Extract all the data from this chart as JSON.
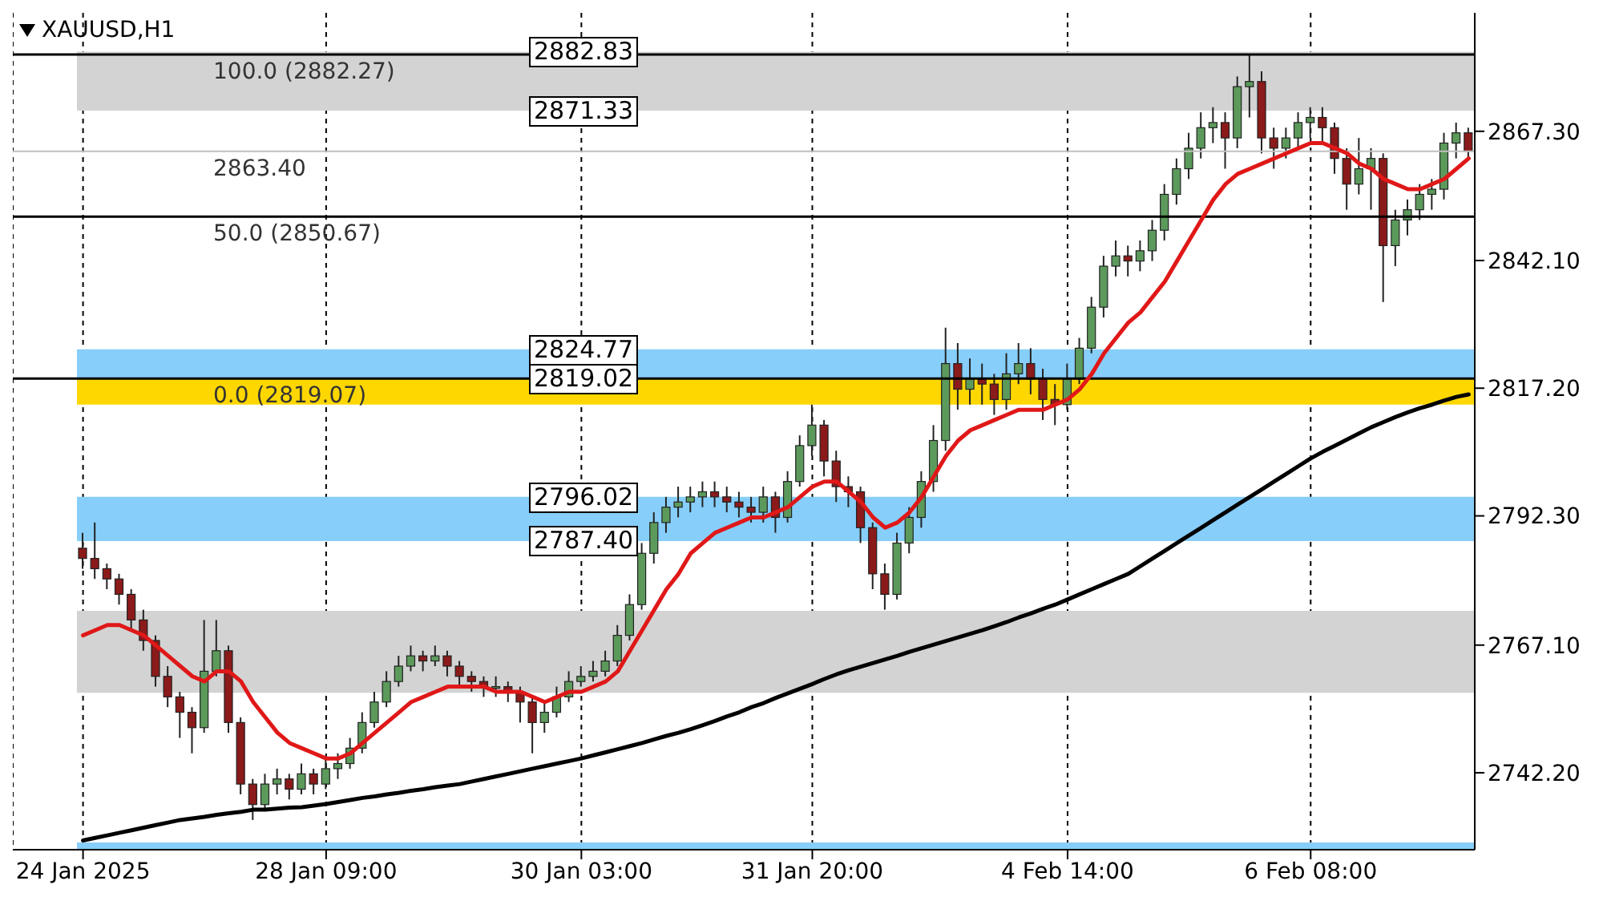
{
  "chart_data": {
    "type": "candlestick",
    "title": "XAUUSD,H1",
    "categories": [
      "24 Jan 2025",
      null,
      null,
      null,
      null,
      null,
      null,
      null,
      null,
      null,
      null,
      null,
      null,
      null,
      null,
      null,
      null,
      null,
      null,
      null,
      "28 Jan 09:00",
      null,
      null,
      null,
      null,
      null,
      null,
      null,
      null,
      null,
      null,
      null,
      null,
      null,
      null,
      null,
      null,
      null,
      null,
      null,
      null,
      "30 Jan 03:00",
      null,
      null,
      null,
      null,
      null,
      null,
      null,
      null,
      null,
      null,
      null,
      null,
      null,
      null,
      null,
      null,
      null,
      null,
      "31 Jan 20:00",
      null,
      null,
      null,
      null,
      null,
      null,
      null,
      null,
      null,
      null,
      null,
      null,
      null,
      null,
      null,
      null,
      null,
      null,
      null,
      null,
      "4 Feb 14:00",
      null,
      null,
      null,
      null,
      null,
      null,
      null,
      null,
      null,
      null,
      null,
      null,
      null,
      null,
      null,
      null,
      null,
      null,
      null,
      "6 Feb 08:00",
      null,
      null,
      null,
      null,
      null,
      null,
      null,
      null,
      null,
      null,
      null,
      null,
      null
    ],
    "ohlc": [
      [
        2786,
        2789,
        2782,
        2784
      ],
      [
        2784,
        2791,
        2780,
        2782
      ],
      [
        2782,
        2783,
        2778,
        2780
      ],
      [
        2780,
        2781,
        2775,
        2777
      ],
      [
        2777,
        2778,
        2770,
        2772
      ],
      [
        2772,
        2774,
        2766,
        2768
      ],
      [
        2768,
        2769,
        2759,
        2761
      ],
      [
        2761,
        2763,
        2755,
        2757
      ],
      [
        2757,
        2758,
        2749,
        2754
      ],
      [
        2754,
        2755,
        2746,
        2751
      ],
      [
        2751,
        2772,
        2750,
        2762
      ],
      [
        2762,
        2772,
        2761,
        2766
      ],
      [
        2766,
        2767,
        2750,
        2752
      ],
      [
        2752,
        2753,
        2738,
        2740
      ],
      [
        2740,
        2741,
        2733,
        2736
      ],
      [
        2736,
        2742,
        2735,
        2740
      ],
      [
        2740,
        2743,
        2738,
        2741
      ],
      [
        2741,
        2742,
        2737,
        2739
      ],
      [
        2739,
        2744,
        2738,
        2742
      ],
      [
        2742,
        2743,
        2738,
        2740
      ],
      [
        2740,
        2745,
        2739,
        2743
      ],
      [
        2743,
        2746,
        2741,
        2744
      ],
      [
        2744,
        2749,
        2743,
        2747
      ],
      [
        2747,
        2754,
        2746,
        2752
      ],
      [
        2752,
        2758,
        2751,
        2756
      ],
      [
        2756,
        2762,
        2755,
        2760
      ],
      [
        2760,
        2765,
        2759,
        2763
      ],
      [
        2763,
        2767,
        2762,
        2765
      ],
      [
        2765,
        2766,
        2762,
        2764
      ],
      [
        2764,
        2767,
        2763,
        2765
      ],
      [
        2765,
        2766,
        2761,
        2763
      ],
      [
        2763,
        2764,
        2759,
        2761
      ],
      [
        2761,
        2762,
        2758,
        2760
      ],
      [
        2760,
        2761,
        2757,
        2759
      ],
      [
        2759,
        2761,
        2757,
        2759
      ],
      [
        2759,
        2760,
        2756,
        2758
      ],
      [
        2758,
        2759,
        2752,
        2756
      ],
      [
        2756,
        2757,
        2746,
        2752
      ],
      [
        2752,
        2756,
        2750,
        2754
      ],
      [
        2754,
        2759,
        2753,
        2757
      ],
      [
        2757,
        2762,
        2756,
        2760
      ],
      [
        2760,
        2763,
        2759,
        2761
      ],
      [
        2761,
        2764,
        2760,
        2762
      ],
      [
        2762,
        2766,
        2761,
        2764
      ],
      [
        2764,
        2771,
        2763,
        2769
      ],
      [
        2769,
        2777,
        2768,
        2775
      ],
      [
        2775,
        2787,
        2774,
        2785
      ],
      [
        2785,
        2793,
        2783,
        2791
      ],
      [
        2791,
        2796,
        2789,
        2794
      ],
      [
        2794,
        2798,
        2792,
        2795
      ],
      [
        2795,
        2798,
        2793,
        2796
      ],
      [
        2796,
        2799,
        2794,
        2797
      ],
      [
        2797,
        2799,
        2794,
        2796
      ],
      [
        2796,
        2798,
        2793,
        2795
      ],
      [
        2795,
        2797,
        2792,
        2794
      ],
      [
        2794,
        2796,
        2791,
        2793
      ],
      [
        2793,
        2798,
        2791,
        2796
      ],
      [
        2796,
        2797,
        2789,
        2792
      ],
      [
        2792,
        2801,
        2791,
        2799
      ],
      [
        2799,
        2808,
        2798,
        2806
      ],
      [
        2806,
        2814,
        2804,
        2810
      ],
      [
        2810,
        2811,
        2800,
        2803
      ],
      [
        2803,
        2805,
        2795,
        2798
      ],
      [
        2798,
        2800,
        2794,
        2797
      ],
      [
        2797,
        2798,
        2787,
        2790
      ],
      [
        2790,
        2791,
        2778,
        2781
      ],
      [
        2781,
        2783,
        2774,
        2777
      ],
      [
        2777,
        2789,
        2776,
        2787
      ],
      [
        2787,
        2794,
        2785,
        2792
      ],
      [
        2792,
        2801,
        2790,
        2799
      ],
      [
        2799,
        2810,
        2797,
        2807
      ],
      [
        2807,
        2829,
        2805,
        2822
      ],
      [
        2822,
        2826,
        2813,
        2817
      ],
      [
        2817,
        2823,
        2814,
        2819
      ],
      [
        2819,
        2822,
        2814,
        2818
      ],
      [
        2818,
        2820,
        2812,
        2815
      ],
      [
        2815,
        2824,
        2813,
        2820
      ],
      [
        2820,
        2826,
        2818,
        2822
      ],
      [
        2822,
        2825,
        2816,
        2819
      ],
      [
        2819,
        2821,
        2811,
        2815
      ],
      [
        2815,
        2818,
        2810,
        2814
      ],
      [
        2814,
        2822,
        2813,
        2819
      ],
      [
        2819,
        2827,
        2818,
        2825
      ],
      [
        2825,
        2835,
        2824,
        2833
      ],
      [
        2833,
        2843,
        2831,
        2841
      ],
      [
        2841,
        2846,
        2839,
        2843
      ],
      [
        2843,
        2845,
        2839,
        2842
      ],
      [
        2842,
        2846,
        2840,
        2844
      ],
      [
        2844,
        2850,
        2842,
        2848
      ],
      [
        2848,
        2857,
        2846,
        2855
      ],
      [
        2855,
        2862,
        2853,
        2860
      ],
      [
        2860,
        2867,
        2858,
        2864
      ],
      [
        2864,
        2871,
        2862,
        2868
      ],
      [
        2868,
        2872,
        2865,
        2869
      ],
      [
        2869,
        2871,
        2860,
        2866
      ],
      [
        2866,
        2878,
        2864,
        2876
      ],
      [
        2876,
        2882.27,
        2870,
        2877
      ],
      [
        2877,
        2879,
        2863,
        2866
      ],
      [
        2866,
        2868,
        2860,
        2864
      ],
      [
        2864,
        2868,
        2862,
        2866
      ],
      [
        2866,
        2871,
        2864,
        2869
      ],
      [
        2869,
        2872,
        2866,
        2870
      ],
      [
        2870,
        2872,
        2865,
        2868
      ],
      [
        2868,
        2869,
        2859,
        2862
      ],
      [
        2862,
        2864,
        2852,
        2857
      ],
      [
        2857,
        2866,
        2855,
        2860
      ],
      [
        2860,
        2864,
        2852,
        2862
      ],
      [
        2862,
        2863,
        2834,
        2845
      ],
      [
        2845,
        2852,
        2841,
        2850
      ],
      [
        2850,
        2854,
        2847,
        2852
      ],
      [
        2852,
        2857,
        2850,
        2855
      ],
      [
        2855,
        2858,
        2852,
        2856
      ],
      [
        2856,
        2867,
        2854,
        2865
      ],
      [
        2865,
        2869,
        2862,
        2867
      ],
      [
        2867,
        2868,
        2862,
        2863.4
      ]
    ],
    "series": [
      {
        "type": "line",
        "color": "#e01818",
        "values": [
          2769,
          2770,
          2771,
          2771,
          2770,
          2769,
          2767,
          2765,
          2763,
          2761,
          2760,
          2762,
          2762,
          2760,
          2756,
          2753,
          2750,
          2748,
          2747,
          2746,
          2745,
          2745,
          2746,
          2748,
          2750,
          2752,
          2754,
          2756,
          2757,
          2758,
          2759,
          2759,
          2759,
          2759,
          2758,
          2758,
          2758,
          2757,
          2756,
          2757,
          2758,
          2758,
          2759,
          2760,
          2762,
          2766,
          2770,
          2774,
          2778,
          2781,
          2785,
          2787,
          2789,
          2790,
          2791,
          2792,
          2792,
          2793,
          2794,
          2796,
          2798,
          2799,
          2799,
          2797,
          2795,
          2792,
          2790,
          2791,
          2793,
          2796,
          2800,
          2804,
          2807,
          2809,
          2810,
          2811,
          2812,
          2813,
          2813,
          2813,
          2814,
          2815,
          2817,
          2820,
          2824,
          2827,
          2830,
          2832,
          2835,
          2838,
          2842,
          2846,
          2850,
          2854,
          2857,
          2859,
          2860,
          2861,
          2862,
          2863,
          2864,
          2865,
          2865,
          2864,
          2863,
          2861,
          2860,
          2858,
          2857,
          2856,
          2856,
          2857,
          2858,
          2860,
          2862
        ]
      },
      {
        "type": "line",
        "color": "#000000",
        "values": [
          2729,
          2729.5,
          2730,
          2730.5,
          2731,
          2731.5,
          2732,
          2732.5,
          2733,
          2733.3,
          2733.6,
          2734,
          2734.3,
          2734.6,
          2735,
          2735,
          2735.2,
          2735.4,
          2735.5,
          2735.8,
          2736.1,
          2736.5,
          2736.9,
          2737.3,
          2737.6,
          2738,
          2738.3,
          2738.7,
          2739,
          2739.4,
          2739.7,
          2740,
          2740.5,
          2741,
          2741.5,
          2742,
          2742.5,
          2743,
          2743.5,
          2744,
          2744.5,
          2745,
          2745.6,
          2746.2,
          2746.8,
          2747.4,
          2748,
          2748.7,
          2749.4,
          2750,
          2750.7,
          2751.5,
          2752.3,
          2753.2,
          2754,
          2755,
          2755.8,
          2756.8,
          2757.7,
          2758.6,
          2759.5,
          2760.5,
          2761.4,
          2762.2,
          2762.9,
          2763.6,
          2764.3,
          2765,
          2765.8,
          2766.5,
          2767.2,
          2767.9,
          2768.6,
          2769.3,
          2770,
          2770.8,
          2771.6,
          2772.5,
          2773.3,
          2774.2,
          2775,
          2776,
          2777,
          2778,
          2779,
          2780,
          2781,
          2782.5,
          2784,
          2785.5,
          2787,
          2788.5,
          2790,
          2791.5,
          2793,
          2794.5,
          2796,
          2797.5,
          2799,
          2800.5,
          2802,
          2803.5,
          2804.8,
          2806,
          2807.2,
          2808.4,
          2809.6,
          2810.6,
          2811.6,
          2812.5,
          2813.3,
          2814,
          2814.8,
          2815.5,
          2816
        ]
      }
    ],
    "ylim": [
      2727.2,
      2890.4
    ],
    "yticks": [
      {
        "value": 2742.2,
        "label": "2742.20"
      },
      {
        "value": 2767.1,
        "label": "2767.10"
      },
      {
        "value": 2792.3,
        "label": "2792.30"
      },
      {
        "value": 2817.2,
        "label": "2817.20"
      },
      {
        "value": 2842.1,
        "label": "2842.10"
      },
      {
        "value": 2867.3,
        "label": "2867.30"
      }
    ],
    "bands": [
      {
        "axis": "y",
        "from": 2871.33,
        "to": 2882.83,
        "color": "#d3d3d3"
      },
      {
        "axis": "y",
        "from": 2757.8,
        "to": 2773.8,
        "color": "#d3d3d3"
      },
      {
        "axis": "y",
        "from": 2814.0,
        "to": 2819.5,
        "color": "#ffd700"
      },
      {
        "axis": "y",
        "from": 2819.07,
        "to": 2824.77,
        "color": "#87cefa"
      },
      {
        "axis": "y",
        "from": 2787.4,
        "to": 2796.02,
        "color": "#87cefa"
      },
      {
        "axis": "y",
        "from": 2727.2,
        "to": 2728.6,
        "color": "#87cefa"
      }
    ],
    "ref_lines": [
      {
        "axis": "y",
        "value": 2882.27,
        "label": "100.0 (2882.27)",
        "color": "#000000"
      },
      {
        "axis": "y",
        "value": 2850.67,
        "label": "50.0 (2850.67)",
        "color": "#000000"
      },
      {
        "axis": "y",
        "value": 2819.07,
        "label": "0.0 (2819.07)",
        "color": "#000000"
      },
      {
        "axis": "y",
        "value": 2863.4,
        "label": "2863.40",
        "color": "#c0c0c0"
      }
    ],
    "annotations": [
      {
        "text": "2882.83",
        "y": 2882.83
      },
      {
        "text": "2871.33",
        "y": 2871.33
      },
      {
        "text": "2824.77",
        "y": 2824.77
      },
      {
        "text": "2819.02",
        "y": 2819.02
      },
      {
        "text": "2796.02",
        "y": 2796.02
      },
      {
        "text": "2787.40",
        "y": 2787.4
      }
    ],
    "grid": "x"
  }
}
